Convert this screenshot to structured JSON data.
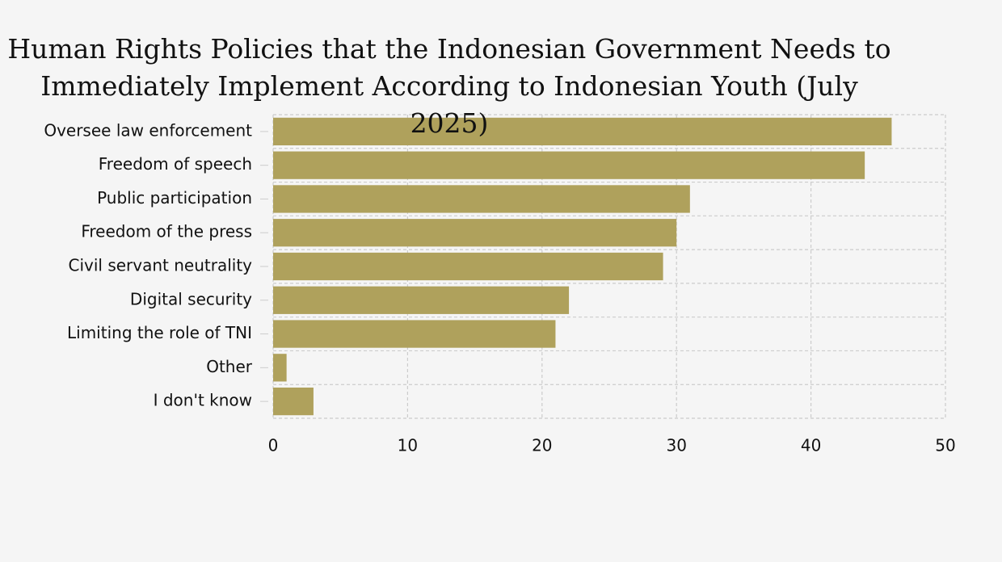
{
  "chart_data": {
    "type": "barh",
    "title": "Human Rights Policies that the Indonesian Government Needs to Immediately Implement According to Indonesian Youth (July 2025)",
    "categories": [
      "Oversee law enforcement",
      "Freedom of speech",
      "Public participation",
      "Freedom of the press",
      "Civil servant neutrality",
      "Digital security",
      "Limiting the role of TNI",
      "Other",
      "I don't know"
    ],
    "values": [
      46,
      44,
      31,
      30,
      29,
      22,
      21,
      1,
      3
    ],
    "color": "#afa15c",
    "xlim": [
      0,
      50
    ],
    "xticks": [
      0,
      10,
      20,
      30,
      40,
      50
    ],
    "grid": true
  }
}
